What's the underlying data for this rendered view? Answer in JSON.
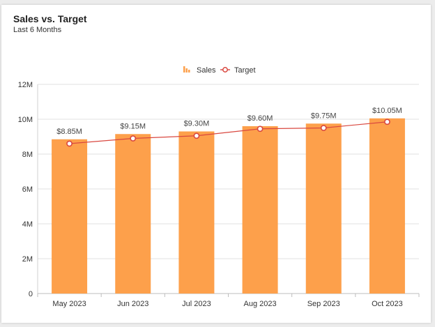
{
  "header": {
    "title": "Sales vs. Target",
    "subtitle": "Last 6 Months"
  },
  "colors": {
    "sales": "#fda04b",
    "target": "#d9473f",
    "grid": "#e2e2e2"
  },
  "chart_data": {
    "type": "bar",
    "title": "Sales vs. Target",
    "subtitle": "Last 6 Months",
    "categories": [
      "May 2023",
      "Jun 2023",
      "Jul 2023",
      "Aug 2023",
      "Sep 2023",
      "Oct 2023"
    ],
    "series": [
      {
        "name": "Sales",
        "type": "bar",
        "values": [
          8.85,
          9.15,
          9.3,
          9.6,
          9.75,
          10.05
        ],
        "labels": [
          "$8.85M",
          "$9.15M",
          "$9.30M",
          "$9.60M",
          "$9.75M",
          "$10.05M"
        ]
      },
      {
        "name": "Target",
        "type": "line",
        "values": [
          8.6,
          8.9,
          9.05,
          9.45,
          9.5,
          9.85
        ]
      }
    ],
    "ylim": [
      0,
      12
    ],
    "yticks": [
      0,
      2,
      4,
      6,
      8,
      10,
      12
    ],
    "ytick_labels": [
      "0",
      "2M",
      "4M",
      "6M",
      "8M",
      "10M",
      "12M"
    ],
    "units": "millions USD",
    "legend": {
      "position": "top",
      "entries": [
        "Sales",
        "Target"
      ]
    },
    "grid": true
  }
}
